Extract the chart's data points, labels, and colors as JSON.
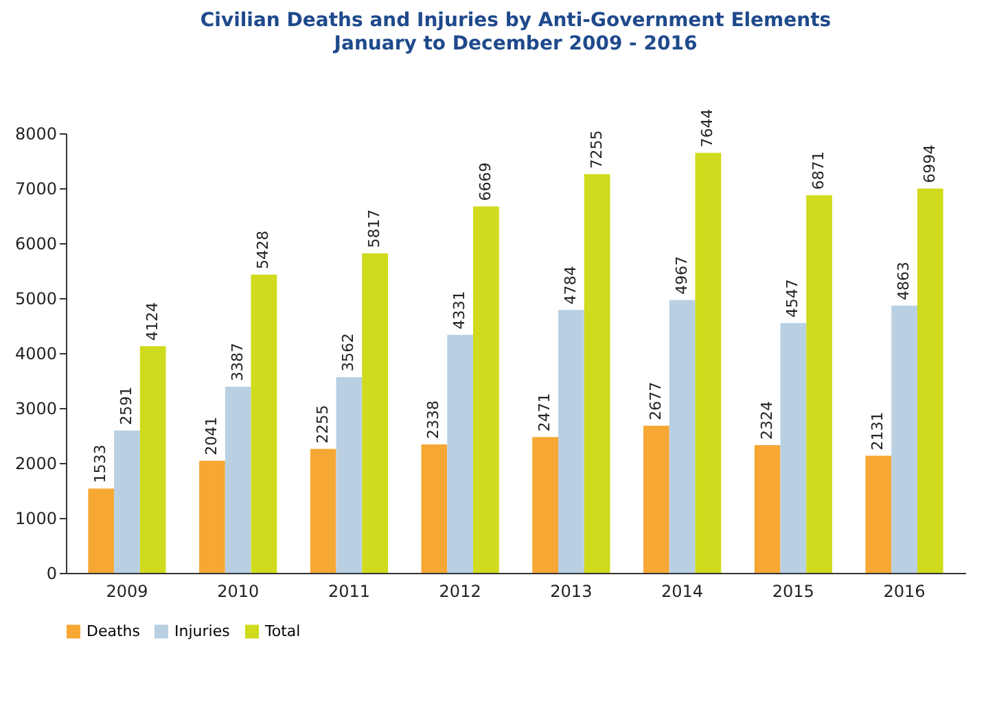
{
  "chart_data": {
    "type": "bar",
    "title": "Civilian Deaths and Injuries by Anti-Government Elements",
    "subtitle": "January to December 2009 - 2016",
    "categories": [
      "2009",
      "2010",
      "2011",
      "2012",
      "2013",
      "2014",
      "2015",
      "2016"
    ],
    "series": [
      {
        "name": "Deaths",
        "color": "#f7a734",
        "values": [
          1533,
          2041,
          2255,
          2338,
          2471,
          2677,
          2324,
          2131
        ]
      },
      {
        "name": "Injuries",
        "color": "#b9d0e3",
        "values": [
          2591,
          3387,
          3562,
          4331,
          4784,
          4967,
          4547,
          4863
        ]
      },
      {
        "name": "Total",
        "color": "#cfdb1c",
        "values": [
          4124,
          5428,
          5817,
          6669,
          7255,
          7644,
          6871,
          6994
        ]
      }
    ],
    "ylim": [
      0,
      8000
    ],
    "yticks": [
      0,
      1000,
      2000,
      3000,
      4000,
      5000,
      6000,
      7000,
      8000
    ],
    "data_labels": true,
    "grid": false,
    "legend": "bottom"
  }
}
